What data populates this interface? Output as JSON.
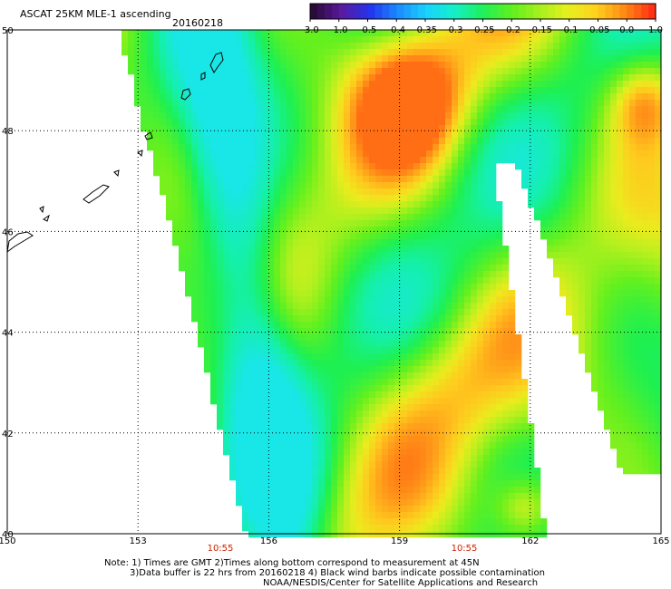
{
  "header": {
    "title": "ASCAT 25KM MLE-1 ascending",
    "date": "20160218"
  },
  "colorbar": {
    "labels": [
      "-3.0",
      "-1.0",
      "-0.5",
      "-0.4",
      "-0.35",
      "-0.3",
      "-0.25",
      "-0.2",
      "-0.15",
      "-0.1",
      "-0.05",
      "0.0",
      "1.0"
    ],
    "colors": [
      "#2a0a3a",
      "#5a1aa0",
      "#2233ee",
      "#1b8cff",
      "#19d2ff",
      "#14f0c8",
      "#1ef05a",
      "#5ef01e",
      "#a4f01e",
      "#e6f01e",
      "#ffd21e",
      "#ff8c14",
      "#ff3214"
    ]
  },
  "map": {
    "lat_labels": [
      "50",
      "48",
      "46",
      "44",
      "42",
      "40"
    ],
    "lon_labels": [
      "150",
      "153",
      "156",
      "159",
      "162",
      "165"
    ],
    "times": [
      "10:55",
      "10:55"
    ],
    "time_color": "#cc2200"
  },
  "notes": {
    "line1": "Note: 1) Times are GMT 2)Times along bottom correspond to measurement at 45N",
    "line2": "3)Data buffer is 22 hrs from 20160218 4) Black wind barbs indicate possible contamination",
    "line3": "NOAA/NESDIS/Center for Satellite Applications and Research"
  }
}
